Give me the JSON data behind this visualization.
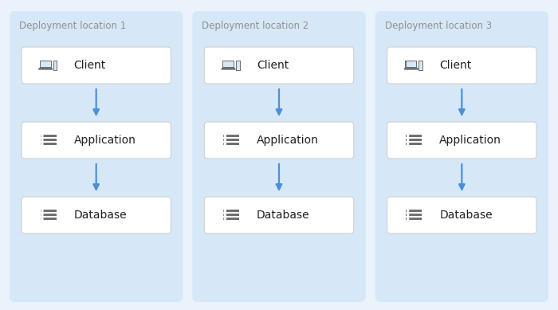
{
  "bg_color": "#eaf2fb",
  "panel_color": "#d6e8f7",
  "box_color": "#ffffff",
  "box_edge_color": "#d0d0d0",
  "arrow_color": "#4a90d9",
  "text_color": "#202020",
  "label_color": "#909090",
  "icon_color": "#707070",
  "deployments": [
    "Deployment location 1",
    "Deployment location 2",
    "Deployment location 3"
  ],
  "fig_width": 7.0,
  "fig_height": 3.89,
  "dpi": 100
}
